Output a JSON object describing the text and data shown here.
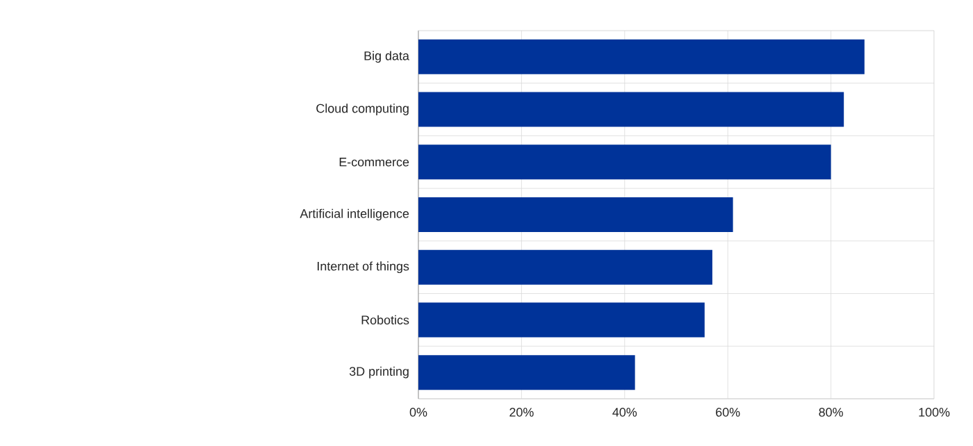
{
  "chart_data": {
    "type": "bar",
    "orientation": "horizontal",
    "categories": [
      "Big data",
      "Cloud computing",
      "E-commerce",
      "Artificial intelligence",
      "Internet of things",
      "Robotics",
      "3D printing"
    ],
    "values": [
      86.5,
      82.5,
      80,
      61,
      57,
      55.5,
      42
    ],
    "color": "#003399",
    "grid": true,
    "xlim": [
      0,
      100
    ],
    "xticks": [
      {
        "value": 0,
        "label": "0%"
      },
      {
        "value": 20,
        "label": "20%"
      },
      {
        "value": 40,
        "label": "40%"
      },
      {
        "value": 60,
        "label": "60%"
      },
      {
        "value": 80,
        "label": "80%"
      },
      {
        "value": 100,
        "label": "100%"
      }
    ]
  }
}
